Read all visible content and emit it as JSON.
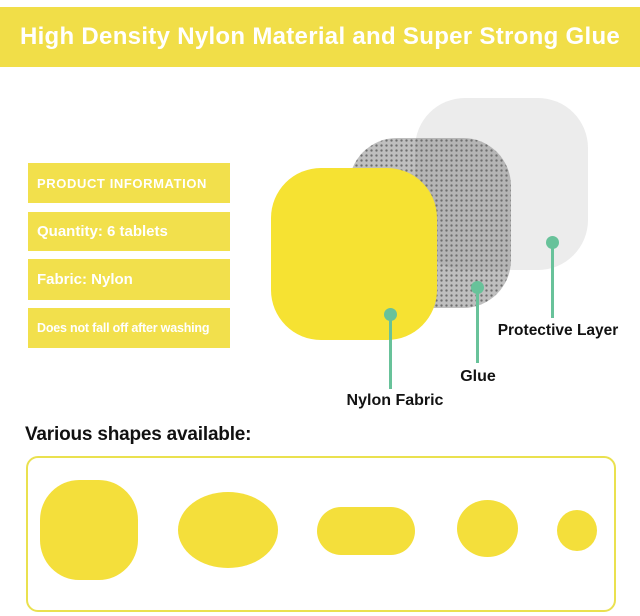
{
  "header": {
    "title": "High Density Nylon Material and Super Strong Glue",
    "bg_color": "#F1DE48",
    "text_color": "#FFFFFF"
  },
  "info_panel": {
    "bar_color": "#F2E04C",
    "text_color": "#FFFFFF",
    "items": [
      {
        "label": "PRODUCT INFORMATION"
      },
      {
        "label": "Quantity: 6 tablets"
      },
      {
        "label": "Fabric: Nylon"
      },
      {
        "label": "Does not fall off after washing"
      }
    ]
  },
  "layer_diagram": {
    "connector_color": "#68C29A",
    "layers": [
      {
        "name": "Nylon Fabric",
        "color": "#F6E232"
      },
      {
        "name": "Glue",
        "color": "#BBBBBB"
      },
      {
        "name": "Protective Layer",
        "color": "#ECECEC"
      }
    ]
  },
  "shapes_section": {
    "heading": "Various shapes available:",
    "box_border_color": "#EAE14F",
    "shape_color": "#F4DF3B",
    "shapes": [
      "rounded-square",
      "oval",
      "pill",
      "circle",
      "small-circle"
    ]
  }
}
